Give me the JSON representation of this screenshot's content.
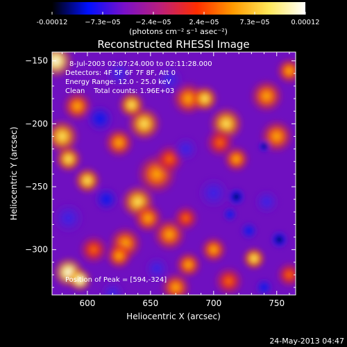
{
  "chart_data": {
    "type": "heatmap",
    "title": "Reconstructed RHESSI Image",
    "xlabel": "Heliocentric X (arcsec)",
    "ylabel": "Heliocentric Y (arcsec)",
    "xlim": [
      572,
      765
    ],
    "ylim": [
      -336,
      -143
    ],
    "x_ticks": [
      600,
      650,
      700,
      750
    ],
    "y_ticks": [
      -150,
      -200,
      -250,
      -300
    ],
    "colorbar": {
      "range": [
        -0.00012,
        0.00012
      ],
      "tick_labels": [
        "-0.00012",
        "−7.3e−05",
        "−2.4e−05",
        "2.4e−05",
        "7.3e−05",
        "0.00012"
      ],
      "unit": "(photons cm⁻² s⁻¹ asec⁻²)",
      "colors": [
        "#000000",
        "#0010ff",
        "#7a10c8",
        "#bb1f7a",
        "#ff2d00",
        "#ff9a00",
        "#ffe85a",
        "#ffffff"
      ]
    },
    "annotations": [
      "8-Jul-2003 02:07:24.000 to 02:11:28.000",
      "Detectors: 4F 5F 6F 7F 8F, Att 0",
      "Energy Range: 12.0 - 25.0 keV",
      "Clean    Total counts: 1.96E+03",
      "Position of Peak = [594,-324]"
    ],
    "peak": {
      "x": 594,
      "y": -324
    },
    "blobs": [
      {
        "x": 575,
        "y": -150,
        "v": 1.0,
        "s": 10
      },
      {
        "x": 592,
        "y": -186,
        "v": 0.6,
        "s": 9
      },
      {
        "x": 580,
        "y": -210,
        "v": 0.9,
        "s": 10
      },
      {
        "x": 585,
        "y": -228,
        "v": 0.8,
        "s": 8
      },
      {
        "x": 610,
        "y": -196,
        "v": -0.7,
        "s": 9
      },
      {
        "x": 645,
        "y": -200,
        "v": 0.9,
        "s": 10
      },
      {
        "x": 635,
        "y": -185,
        "v": 0.8,
        "s": 8
      },
      {
        "x": 625,
        "y": -215,
        "v": 0.6,
        "s": 9
      },
      {
        "x": 680,
        "y": -180,
        "v": 0.6,
        "s": 10
      },
      {
        "x": 693,
        "y": -180,
        "v": 0.95,
        "s": 8
      },
      {
        "x": 710,
        "y": -200,
        "v": 0.8,
        "s": 10
      },
      {
        "x": 718,
        "y": -228,
        "v": 0.7,
        "s": 8
      },
      {
        "x": 705,
        "y": -215,
        "v": 0.5,
        "s": 9
      },
      {
        "x": 742,
        "y": -178,
        "v": 0.7,
        "s": 10
      },
      {
        "x": 760,
        "y": -158,
        "v": 0.6,
        "s": 8
      },
      {
        "x": 750,
        "y": -210,
        "v": 0.7,
        "s": 10
      },
      {
        "x": 740,
        "y": -218,
        "v": -0.9,
        "s": 4
      },
      {
        "x": 655,
        "y": -240,
        "v": 0.6,
        "s": 12
      },
      {
        "x": 665,
        "y": -228,
        "v": 0.55,
        "s": 9
      },
      {
        "x": 640,
        "y": -262,
        "v": 0.9,
        "s": 10
      },
      {
        "x": 648,
        "y": -275,
        "v": 0.7,
        "s": 9
      },
      {
        "x": 600,
        "y": -245,
        "v": 0.9,
        "s": 8
      },
      {
        "x": 615,
        "y": -260,
        "v": -0.6,
        "s": 8
      },
      {
        "x": 585,
        "y": -275,
        "v": -0.5,
        "s": 10
      },
      {
        "x": 630,
        "y": -295,
        "v": 0.7,
        "s": 10
      },
      {
        "x": 625,
        "y": -305,
        "v": 0.6,
        "s": 8
      },
      {
        "x": 605,
        "y": -300,
        "v": 0.5,
        "s": 9
      },
      {
        "x": 585,
        "y": -318,
        "v": 1.0,
        "s": 9
      },
      {
        "x": 594,
        "y": -324,
        "v": 1.1,
        "s": 7
      },
      {
        "x": 665,
        "y": -288,
        "v": 0.6,
        "s": 10
      },
      {
        "x": 678,
        "y": -275,
        "v": 0.5,
        "s": 8
      },
      {
        "x": 680,
        "y": -312,
        "v": 0.7,
        "s": 8
      },
      {
        "x": 670,
        "y": -330,
        "v": 0.6,
        "s": 9
      },
      {
        "x": 700,
        "y": -300,
        "v": 0.6,
        "s": 8
      },
      {
        "x": 712,
        "y": -325,
        "v": 0.5,
        "s": 9
      },
      {
        "x": 732,
        "y": -307,
        "v": 0.8,
        "s": 7
      },
      {
        "x": 742,
        "y": -262,
        "v": -0.5,
        "s": 8
      },
      {
        "x": 718,
        "y": -258,
        "v": -0.85,
        "s": 6
      },
      {
        "x": 728,
        "y": -285,
        "v": -0.75,
        "s": 6
      },
      {
        "x": 752,
        "y": -292,
        "v": -0.8,
        "s": 6
      },
      {
        "x": 713,
        "y": -272,
        "v": -0.7,
        "s": 5
      },
      {
        "x": 740,
        "y": -330,
        "v": -0.6,
        "s": 6
      },
      {
        "x": 760,
        "y": -320,
        "v": 0.5,
        "s": 8
      },
      {
        "x": 625,
        "y": -160,
        "v": -0.4,
        "s": 9
      },
      {
        "x": 665,
        "y": -165,
        "v": -0.45,
        "s": 9
      },
      {
        "x": 678,
        "y": -220,
        "v": -0.45,
        "s": 8
      },
      {
        "x": 700,
        "y": -255,
        "v": -0.3,
        "s": 10
      },
      {
        "x": 620,
        "y": -335,
        "v": -0.45,
        "s": 8
      },
      {
        "x": 655,
        "y": -315,
        "v": -0.4,
        "s": 8
      }
    ]
  },
  "footer": {
    "date": "24-May-2013 04:47"
  }
}
